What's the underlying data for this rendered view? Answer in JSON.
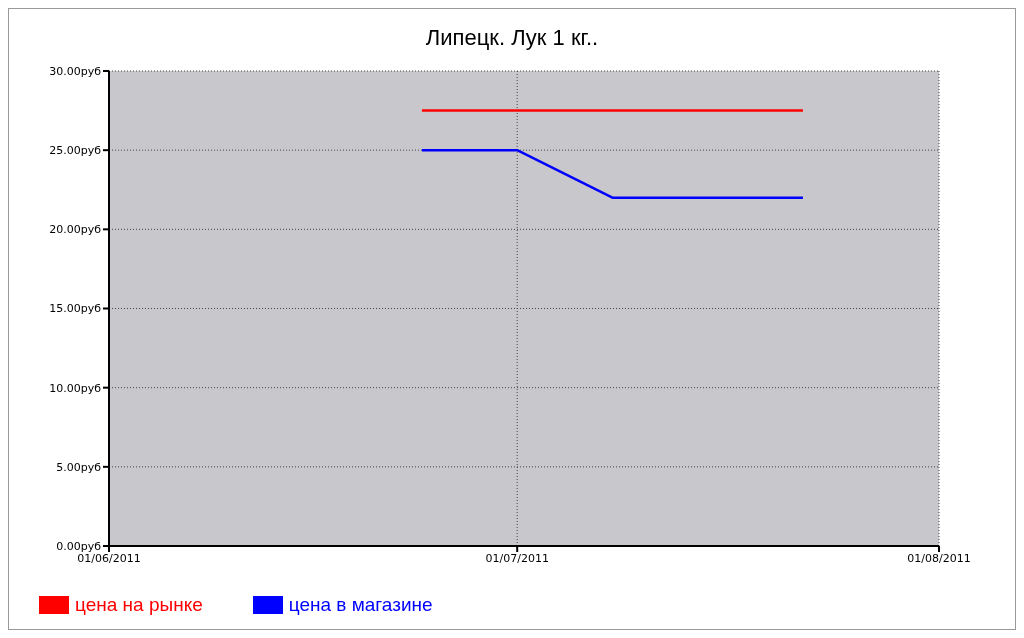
{
  "chart_data": {
    "type": "line",
    "title": "Липецк. Лук 1 кг..",
    "x": [
      "2011-06-24",
      "2011-07-01",
      "2011-07-08",
      "2011-07-15",
      "2011-07-22"
    ],
    "series": [
      {
        "name": "цена на рынке",
        "color": "#ff0000",
        "values": [
          27.5,
          27.5,
          27.5,
          27.5,
          27.5
        ]
      },
      {
        "name": "цена в магазине",
        "color": "#0000ff",
        "values": [
          25,
          25,
          22,
          22,
          22
        ]
      }
    ],
    "xlim": [
      "2011-06-01",
      "2011-08-01"
    ],
    "xticks": [
      {
        "value": "2011-06-01",
        "label": "01/06/2011"
      },
      {
        "value": "2011-07-01",
        "label": "01/07/2011"
      },
      {
        "value": "2011-08-01",
        "label": "01/08/2011"
      }
    ],
    "ylim": [
      0,
      30
    ],
    "yticks": [
      {
        "value": 0,
        "label": "0.00руб"
      },
      {
        "value": 5,
        "label": "5.00руб"
      },
      {
        "value": 10,
        "label": "10.00руб"
      },
      {
        "value": 15,
        "label": "15.00руб"
      },
      {
        "value": 20,
        "label": "20.00руб"
      },
      {
        "value": 25,
        "label": "25.00руб"
      },
      {
        "value": 30,
        "label": "30.00руб"
      }
    ],
    "grid": true,
    "legend": "bottom left",
    "marker": "none",
    "line_style": "solid"
  }
}
